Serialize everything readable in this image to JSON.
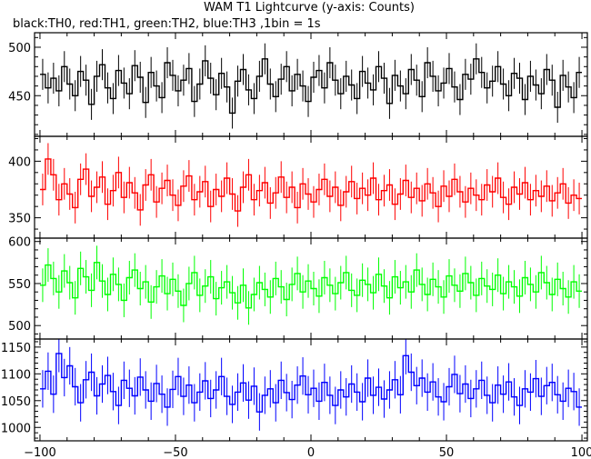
{
  "chart_data": {
    "type": "line",
    "title": "WAM T1 Lightcurve (y-axis: Counts)",
    "subtitle": "black:TH0, red:TH1, green:TH2, blue:TH3 ,1bin = 1s",
    "xlabel": "",
    "ylabel": "",
    "xlim": [
      -102,
      102
    ],
    "x_ticks": [
      -100,
      -50,
      0,
      50,
      100
    ],
    "x_tick_labels": [
      "−100",
      "−50",
      "0",
      "50",
      "100"
    ],
    "grid": false,
    "bin_seconds": 1,
    "x": [
      -99,
      -97,
      -95,
      -93,
      -91,
      -89,
      -87,
      -85,
      -83,
      -81,
      -79,
      -77,
      -75,
      -73,
      -71,
      -69,
      -67,
      -65,
      -63,
      -61,
      -59,
      -57,
      -55,
      -53,
      -51,
      -49,
      -47,
      -45,
      -43,
      -41,
      -39,
      -37,
      -35,
      -33,
      -31,
      -29,
      -27,
      -25,
      -23,
      -21,
      -19,
      -17,
      -15,
      -13,
      -11,
      -9,
      -7,
      -5,
      -3,
      -1,
      1,
      3,
      5,
      7,
      9,
      11,
      13,
      15,
      17,
      19,
      21,
      23,
      25,
      27,
      29,
      31,
      33,
      35,
      37,
      39,
      41,
      43,
      45,
      47,
      49,
      51,
      53,
      55,
      57,
      59,
      61,
      63,
      65,
      67,
      69,
      71,
      73,
      75,
      77,
      79,
      81,
      83,
      85,
      87,
      89,
      91,
      93,
      95,
      97,
      99
    ],
    "series": [
      {
        "name": "TH0",
        "color": "#000000",
        "ylim": [
          408,
          515
        ],
        "y_ticks": [
          450,
          500
        ],
        "error": 16,
        "values": [
          472,
          458,
          468,
          455,
          480,
          462,
          450,
          475,
          466,
          441,
          470,
          482,
          458,
          447,
          476,
          463,
          452,
          481,
          469,
          443,
          474,
          460,
          448,
          484,
          471,
          455,
          466,
          478,
          444,
          462,
          486,
          468,
          451,
          473,
          459,
          432,
          465,
          477,
          456,
          447,
          470,
          488,
          462,
          449,
          467,
          480,
          455,
          472,
          460,
          444,
          469,
          476,
          458,
          484,
          466,
          452,
          470,
          461,
          447,
          475,
          463,
          456,
          480,
          468,
          442,
          471,
          460,
          452,
          477,
          466,
          449,
          484,
          470,
          455,
          463,
          478,
          459,
          446,
          472,
          467,
          488,
          474,
          458,
          465,
          480,
          462,
          450,
          473,
          468,
          446,
          470,
          461,
          452,
          477,
          466,
          438,
          471,
          459,
          448,
          474
        ]
      },
      {
        "name": "TH1",
        "color": "#ff0000",
        "ylim": [
          332,
          422
        ],
        "y_ticks": [
          350,
          400
        ],
        "error": 14,
        "values": [
          375,
          402,
          388,
          366,
          380,
          371,
          359,
          384,
          393,
          369,
          377,
          386,
          362,
          374,
          390,
          368,
          381,
          372,
          357,
          379,
          388,
          364,
          376,
          383,
          370,
          361,
          378,
          387,
          366,
          373,
          382,
          360,
          375,
          369,
          385,
          371,
          356,
          377,
          388,
          366,
          374,
          381,
          363,
          372,
          386,
          368,
          377,
          359,
          380,
          371,
          364,
          375,
          384,
          369,
          377,
          361,
          373,
          382,
          367,
          376,
          370,
          385,
          366,
          374,
          379,
          362,
          371,
          383,
          368,
          376,
          365,
          380,
          372,
          360,
          378,
          369,
          384,
          373,
          364,
          376,
          370,
          366,
          379,
          373,
          385,
          368,
          362,
          377,
          371,
          381,
          366,
          374,
          369,
          378,
          365,
          372,
          380,
          363,
          370,
          367
        ]
      },
      {
        "name": "TH2",
        "color": "#00ff00",
        "ylim": [
          484,
          604
        ],
        "y_ticks": [
          500,
          550,
          600
        ],
        "error": 20,
        "values": [
          548,
          572,
          556,
          540,
          565,
          551,
          533,
          568,
          558,
          542,
          575,
          553,
          537,
          561,
          549,
          530,
          557,
          566,
          544,
          552,
          528,
          546,
          559,
          538,
          555,
          541,
          524,
          550,
          563,
          536,
          547,
          558,
          532,
          545,
          552,
          539,
          527,
          548,
          521,
          537,
          551,
          543,
          534,
          556,
          546,
          531,
          549,
          562,
          540,
          553,
          544,
          535,
          557,
          548,
          538,
          551,
          563,
          542,
          536,
          554,
          549,
          539,
          561,
          547,
          533,
          558,
          545,
          552,
          540,
          566,
          549,
          537,
          555,
          546,
          534,
          559,
          548,
          541,
          562,
          551,
          536,
          556,
          547,
          543,
          560,
          538,
          552,
          546,
          535,
          557,
          549,
          540,
          563,
          551,
          537,
          555,
          544,
          534,
          552,
          541
        ]
      },
      {
        "name": "TH3",
        "color": "#0000ff",
        "ylim": [
          975,
          1165
        ],
        "y_ticks": [
          1000,
          1050,
          1100,
          1150
        ],
        "error": 35,
        "values": [
          1072,
          1105,
          1062,
          1138,
          1093,
          1115,
          1076,
          1046,
          1089,
          1103,
          1059,
          1081,
          1097,
          1067,
          1041,
          1088,
          1073,
          1059,
          1094,
          1070,
          1049,
          1082,
          1062,
          1038,
          1071,
          1095,
          1058,
          1079,
          1046,
          1066,
          1087,
          1054,
          1070,
          1095,
          1058,
          1043,
          1066,
          1083,
          1051,
          1077,
          1029,
          1060,
          1072,
          1046,
          1088,
          1065,
          1052,
          1079,
          1096,
          1061,
          1073,
          1049,
          1084,
          1060,
          1041,
          1070,
          1057,
          1081,
          1066,
          1048,
          1092,
          1060,
          1075,
          1053,
          1070,
          1089,
          1061,
          1134,
          1103,
          1078,
          1092,
          1066,
          1085,
          1057,
          1048,
          1076,
          1099,
          1063,
          1081,
          1054,
          1072,
          1088,
          1060,
          1046,
          1079,
          1062,
          1085,
          1057,
          1041,
          1072,
          1066,
          1091,
          1058,
          1078,
          1084,
          1061,
          1049,
          1073,
          1067,
          1038
        ]
      }
    ]
  }
}
